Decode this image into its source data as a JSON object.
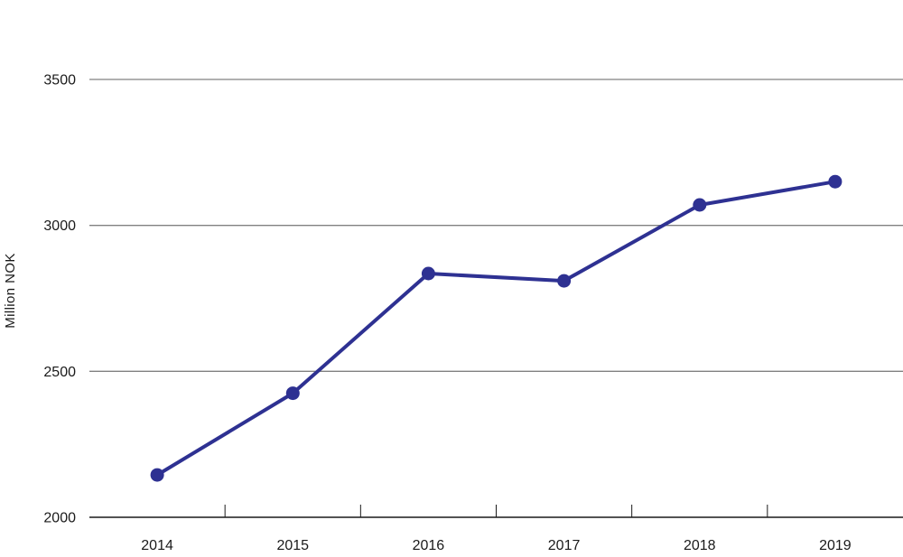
{
  "chart_data": {
    "type": "line",
    "title": "",
    "xlabel": "",
    "ylabel": "Million NOK",
    "categories": [
      "2014",
      "2015",
      "2016",
      "2017",
      "2018",
      "2019"
    ],
    "series": [
      {
        "name": "Million NOK",
        "values": [
          2145,
          2425,
          2835,
          2810,
          3070,
          3150
        ]
      }
    ],
    "ylim": [
      2000,
      3500
    ],
    "yticks": [
      2000,
      2500,
      3000,
      3500
    ],
    "grid": true,
    "legend_position": "none",
    "marker": "circle",
    "colors": {
      "line": "#2E3192",
      "marker": "#2E3192",
      "gridline": "#808080",
      "axis": "#1A1A1A",
      "text": "#1A1A1A",
      "background": "#FFFFFF"
    }
  }
}
